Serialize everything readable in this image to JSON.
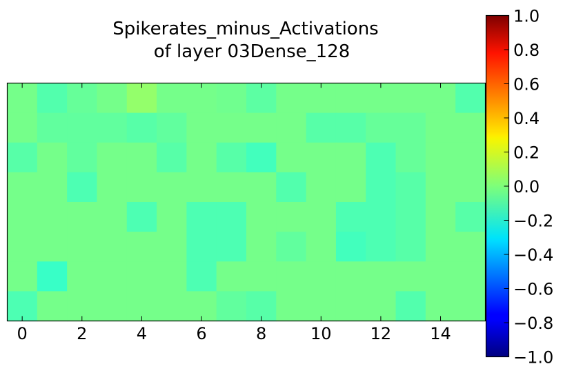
{
  "chart_data": {
    "type": "heatmap",
    "title_lines": [
      "Spikerates_minus_Activations",
      "of layer 03Dense_128"
    ],
    "xlabel": "",
    "ylabel": "",
    "x_ticks": [
      "0",
      "2",
      "4",
      "6",
      "8",
      "10",
      "12",
      "14"
    ],
    "x_tick_values": [
      0,
      2,
      4,
      6,
      8,
      10,
      12,
      14
    ],
    "xlim": [
      -0.5,
      15.5
    ],
    "y_ticks": [],
    "colormap": "jet",
    "colorbar": {
      "range": [
        -1.0,
        1.0
      ],
      "ticks": [
        "1.0",
        "0.8",
        "0.6",
        "0.4",
        "0.2",
        "0.0",
        "−0.2",
        "−0.4",
        "−0.6",
        "−0.8",
        "−1.0"
      ],
      "tick_values": [
        1.0,
        0.8,
        0.6,
        0.4,
        0.2,
        0.0,
        -0.2,
        -0.4,
        -0.6,
        -0.8,
        -1.0
      ]
    },
    "rows": 8,
    "cols": 16,
    "values": [
      [
        -0.02,
        -0.09,
        -0.05,
        -0.02,
        0.04,
        -0.02,
        -0.02,
        -0.03,
        -0.07,
        -0.02,
        -0.02,
        -0.02,
        -0.02,
        -0.02,
        -0.02,
        -0.09
      ],
      [
        -0.02,
        -0.06,
        -0.06,
        -0.06,
        -0.08,
        -0.06,
        -0.02,
        -0.02,
        -0.02,
        -0.02,
        -0.08,
        -0.08,
        -0.05,
        -0.05,
        -0.02,
        -0.02
      ],
      [
        -0.08,
        -0.02,
        -0.06,
        -0.02,
        -0.02,
        -0.08,
        -0.02,
        -0.08,
        -0.12,
        -0.02,
        -0.02,
        -0.02,
        -0.1,
        -0.05,
        -0.02,
        -0.02
      ],
      [
        -0.02,
        -0.02,
        -0.1,
        -0.02,
        -0.02,
        -0.02,
        -0.02,
        -0.02,
        -0.02,
        -0.09,
        -0.02,
        -0.02,
        -0.1,
        -0.08,
        -0.02,
        -0.02
      ],
      [
        -0.02,
        -0.02,
        -0.02,
        -0.02,
        -0.1,
        -0.02,
        -0.1,
        -0.1,
        -0.02,
        -0.02,
        -0.02,
        -0.1,
        -0.1,
        -0.08,
        -0.02,
        -0.08
      ],
      [
        -0.02,
        -0.02,
        -0.02,
        -0.02,
        -0.02,
        -0.02,
        -0.1,
        -0.1,
        -0.02,
        -0.06,
        -0.02,
        -0.12,
        -0.1,
        -0.08,
        -0.02,
        -0.02
      ],
      [
        -0.02,
        -0.14,
        -0.02,
        -0.02,
        -0.02,
        -0.02,
        -0.1,
        -0.02,
        -0.02,
        -0.02,
        -0.02,
        -0.02,
        -0.02,
        -0.02,
        -0.02,
        -0.02
      ],
      [
        -0.1,
        -0.02,
        -0.02,
        -0.02,
        -0.02,
        -0.02,
        -0.02,
        -0.06,
        -0.08,
        -0.02,
        -0.02,
        -0.02,
        -0.02,
        -0.09,
        -0.02,
        -0.02
      ]
    ]
  }
}
